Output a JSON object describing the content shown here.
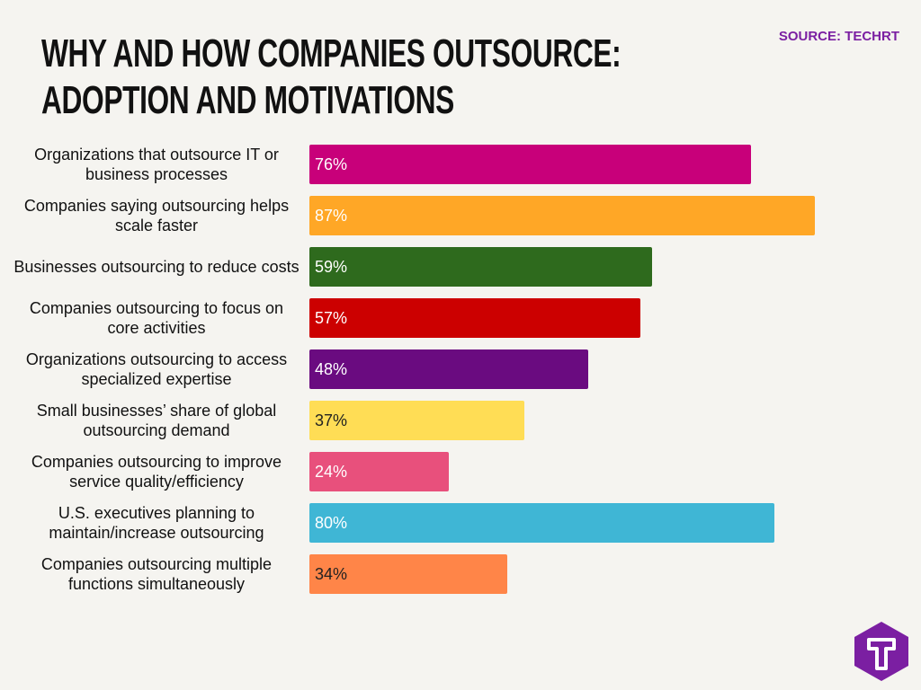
{
  "chart_data": {
    "type": "hbar",
    "title": "WHY AND HOW COMPANIES OUTSOURCE:\nADOPTION AND MOTIVATIONS",
    "source": "SOURCE: TECHRT",
    "categories": [
      "Organizations that outsource IT or business processes",
      "Companies saying outsourcing helps scale faster",
      "Businesses outsourcing to reduce costs",
      "Companies outsourcing to focus on core activities",
      "Organizations outsourcing to access specialized expertise",
      "Small businesses’ share of global outsourcing demand",
      "Companies outsourcing to improve service quality/efficiency",
      "U.S. executives planning to maintain/increase outsourcing",
      "Companies outsourcing multiple functions simultaneously"
    ],
    "values": [
      76,
      87,
      59,
      57,
      48,
      37,
      24,
      80,
      34
    ],
    "value_labels": [
      "76%",
      "87%",
      "59%",
      "57%",
      "48%",
      "37%",
      "24%",
      "80%",
      "34%"
    ],
    "colors": [
      "#c8007a",
      "#ffa726",
      "#2e6a1d",
      "#cc0000",
      "#6a0b80",
      "#ffdd55",
      "#e8507c",
      "#3fb6d5",
      "#ff8548"
    ],
    "value_label_colors": [
      "#ffffff",
      "#ffffff",
      "#ffffff",
      "#ffffff",
      "#ffffff",
      "#222222",
      "#ffffff",
      "#ffffff",
      "#222222"
    ]
  }
}
